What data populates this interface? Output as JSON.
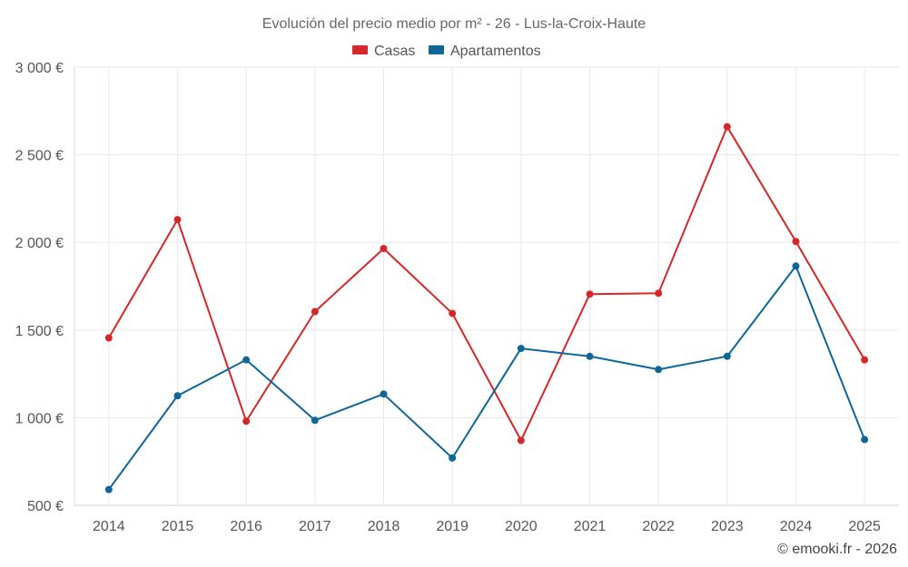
{
  "chart_data": {
    "type": "line",
    "title": "Evolución del precio medio por m² - 26 - Lus-la-Croix-Haute",
    "categories": [
      "2014",
      "2015",
      "2016",
      "2017",
      "2018",
      "2019",
      "2020",
      "2021",
      "2022",
      "2023",
      "2024",
      "2025"
    ],
    "series": [
      {
        "name": "Casas",
        "color": "#d62728",
        "values": [
          1455,
          2130,
          980,
          1605,
          1965,
          1595,
          870,
          1705,
          1710,
          2660,
          2005,
          1330
        ]
      },
      {
        "name": "Apartamentos",
        "color": "#0f6699",
        "values": [
          590,
          1125,
          1330,
          985,
          1135,
          770,
          1395,
          1350,
          1275,
          1350,
          1865,
          875
        ]
      }
    ],
    "ylim": [
      500,
      3000
    ],
    "yticks": [
      500,
      1000,
      1500,
      2000,
      2500,
      3000
    ],
    "ytick_labels": [
      "500 €",
      "1 000 €",
      "1 500 €",
      "2 000 €",
      "2 500 €",
      "3 000 €"
    ],
    "legend_position": "top-center",
    "grid": true
  },
  "credit": "© emooki.fr - 2026"
}
